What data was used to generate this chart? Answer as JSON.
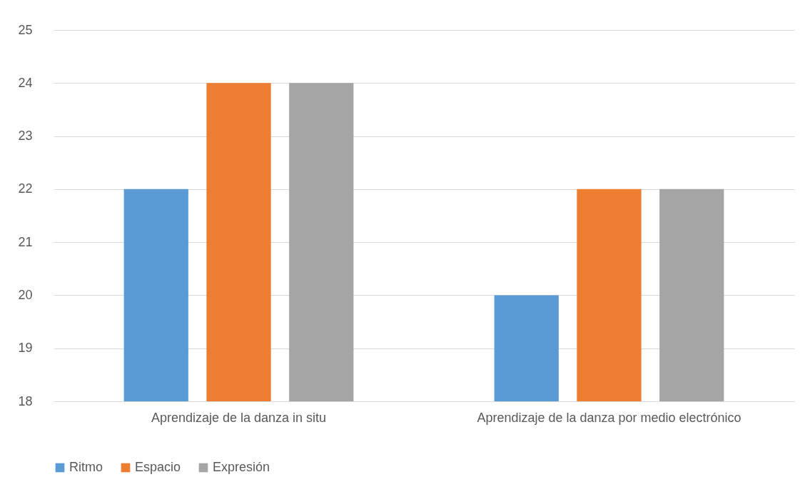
{
  "chart_data": {
    "type": "bar",
    "categories": [
      "Aprendizaje de la danza in situ",
      "Aprendizaje de la danza por medio electrónico"
    ],
    "series": [
      {
        "name": "Ritmo",
        "color": "#5b9bd5",
        "values": [
          22,
          20
        ]
      },
      {
        "name": "Espacio",
        "color": "#ed7d31",
        "values": [
          24,
          22
        ]
      },
      {
        "name": "Expresión",
        "color": "#a5a5a5",
        "values": [
          24,
          22
        ]
      }
    ],
    "ylim": [
      18,
      25
    ],
    "yticks": [
      18,
      19,
      20,
      21,
      22,
      23,
      24,
      25
    ],
    "grid": "y",
    "legend": "bottom"
  }
}
